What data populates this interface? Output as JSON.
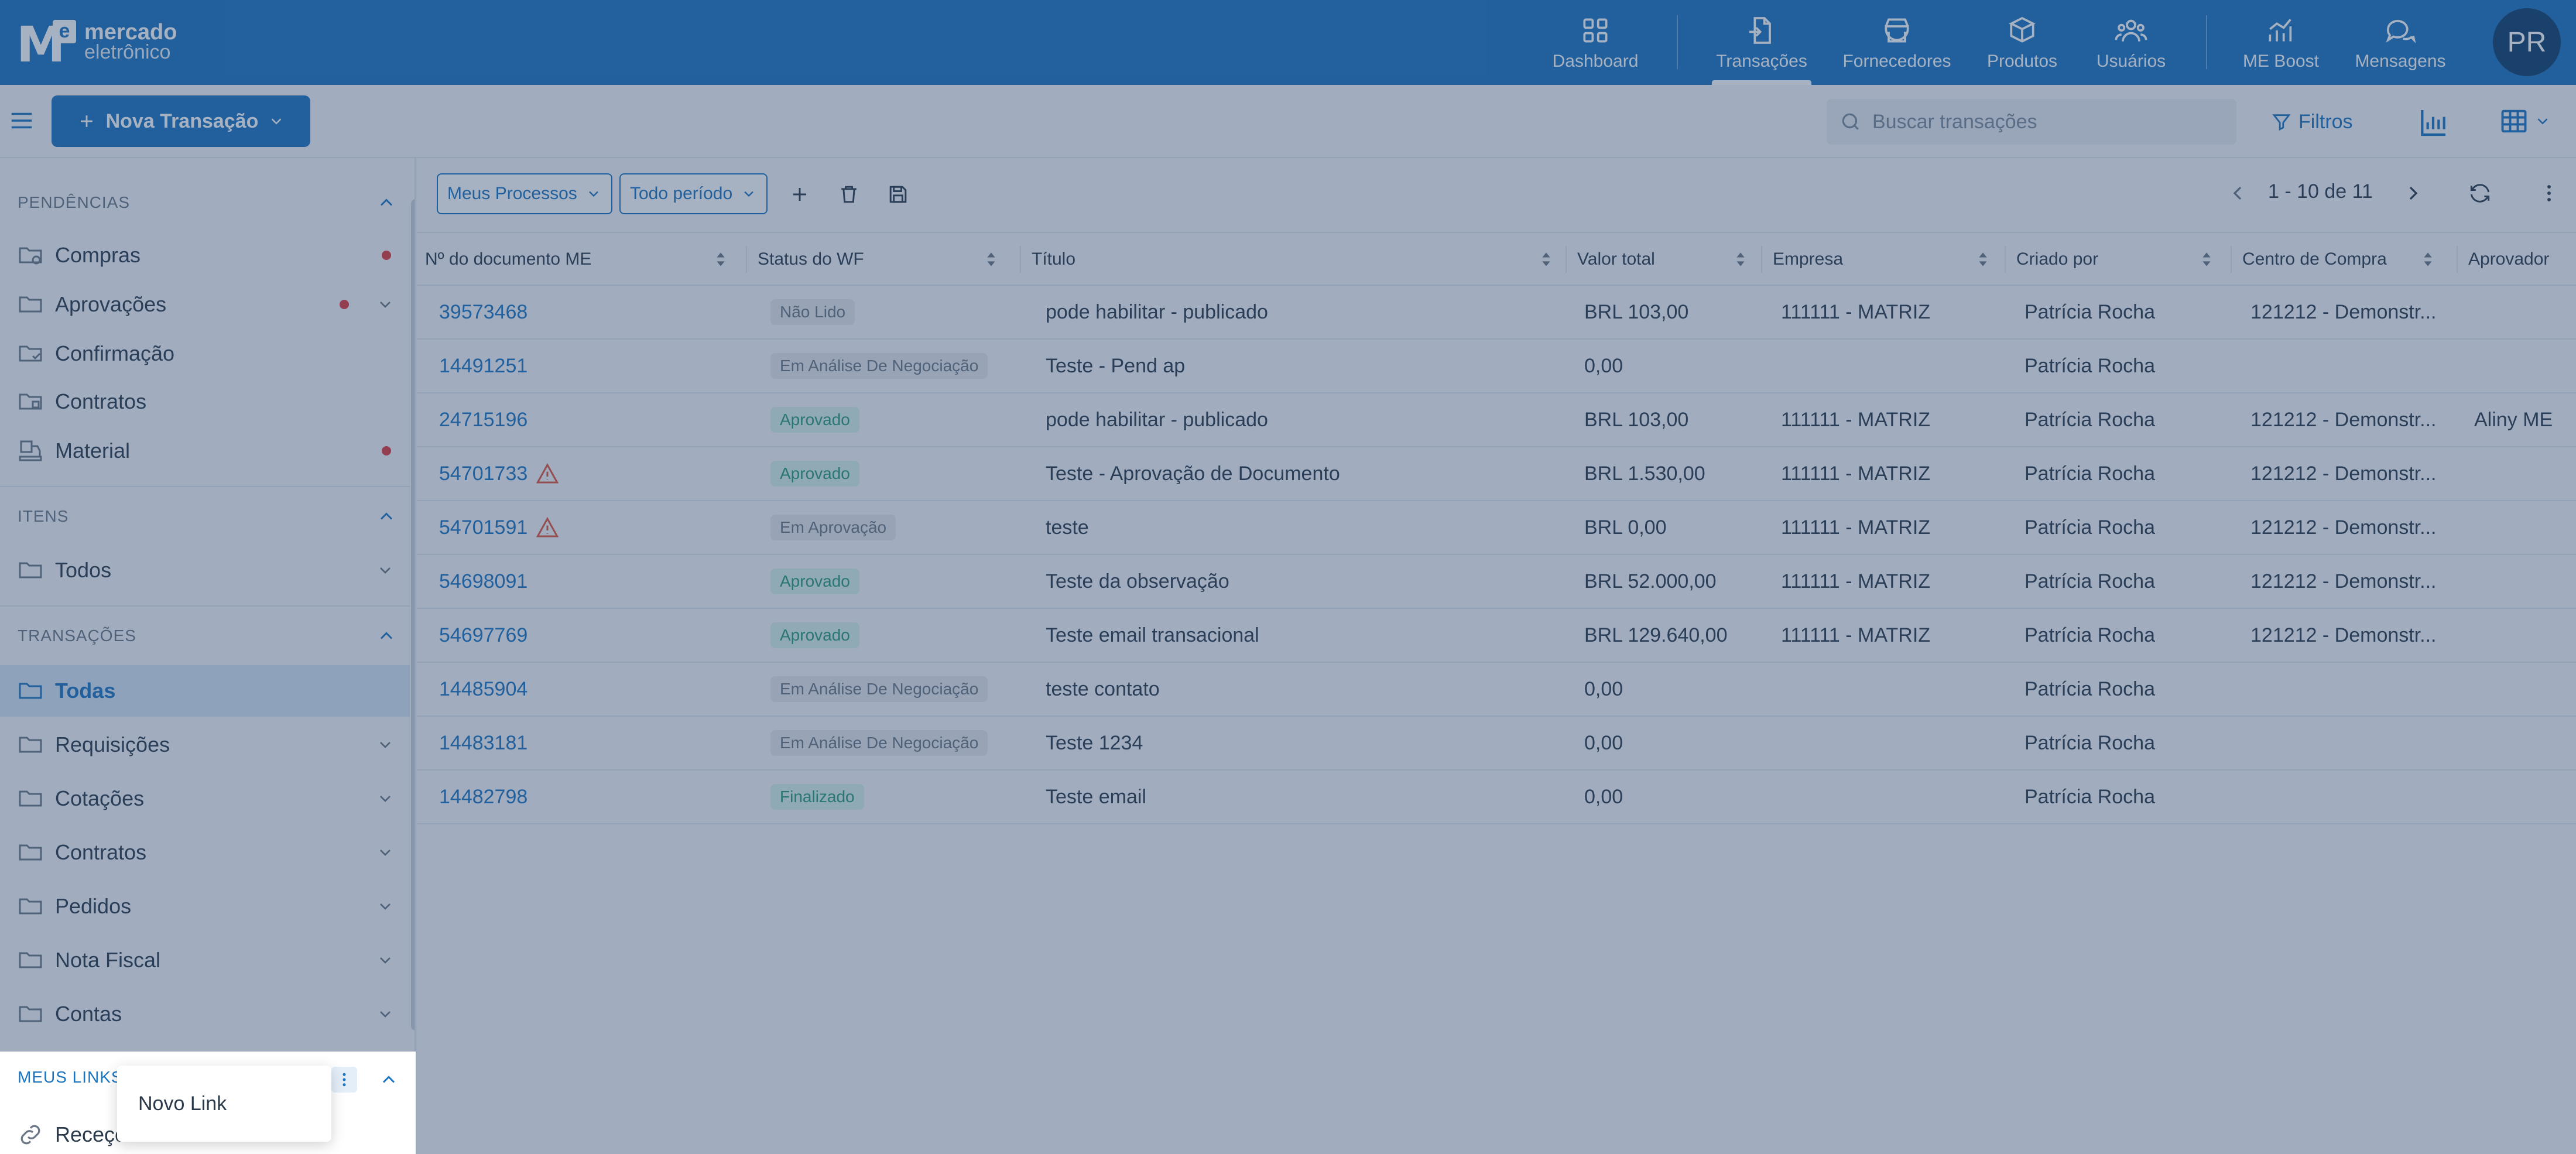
{
  "brand": {
    "line1": "mercado",
    "line2": "eletrônico",
    "mark_letter": "M",
    "mark_badge": "e"
  },
  "nav": [
    {
      "label": "Dashboard",
      "icon": "dashboard-icon"
    },
    {
      "label": "Transações",
      "icon": "transactions-icon",
      "active": true
    },
    {
      "label": "Fornecedores",
      "icon": "suppliers-icon"
    },
    {
      "label": "Produtos",
      "icon": "products-icon"
    },
    {
      "label": "Usuários",
      "icon": "users-icon"
    },
    {
      "label": "ME Boost",
      "icon": "boost-chart-icon"
    },
    {
      "label": "Mensagens",
      "icon": "messages-icon"
    }
  ],
  "user": {
    "initials": "PR"
  },
  "actionbar": {
    "new_button": "Nova Transação",
    "search_placeholder": "Buscar transações",
    "filters": "Filtros"
  },
  "sidebar": {
    "pendencias": {
      "title": "PENDÊNCIAS",
      "items": [
        {
          "label": "Compras",
          "dot": true
        },
        {
          "label": "Aprovações",
          "dot": true,
          "expandable": true
        },
        {
          "label": "Confirmação"
        },
        {
          "label": "Contratos"
        },
        {
          "label": "Material",
          "dot": true
        }
      ]
    },
    "itens": {
      "title": "ITENS",
      "items": [
        {
          "label": "Todos",
          "expandable": true
        }
      ]
    },
    "transacoes": {
      "title": "TRANSAÇÕES",
      "items": [
        {
          "label": "Todas",
          "active": true
        },
        {
          "label": "Requisições",
          "expandable": true
        },
        {
          "label": "Cotações",
          "expandable": true
        },
        {
          "label": "Contratos",
          "expandable": true
        },
        {
          "label": "Pedidos",
          "expandable": true
        },
        {
          "label": "Nota Fiscal",
          "expandable": true
        },
        {
          "label": "Contas",
          "expandable": true
        }
      ]
    },
    "meus_links": {
      "title": "MEUS LINKS",
      "item": "Receçõ",
      "popup_item": "Novo Link"
    }
  },
  "toolbar": {
    "process_filter": "Meus Processos",
    "period_filter": "Todo período",
    "pager": "1 - 10 de 11"
  },
  "table": {
    "columns": [
      "Nº do documento ME",
      "Status do WF",
      "Título",
      "Valor total",
      "Empresa",
      "Criado por",
      "Centro de Compra",
      "Aprovador"
    ],
    "rows": [
      {
        "doc": "39573468",
        "warn": false,
        "status": "Não Lido",
        "status_kind": "gray",
        "title": "pode habilitar - publicado",
        "value": "BRL 103,00",
        "company": "111111 - MATRIZ",
        "created_by": "Patrícia Rocha",
        "center": "121212 - Demonstr...",
        "approver": ""
      },
      {
        "doc": "14491251",
        "warn": false,
        "status": "Em Análise De Negociação",
        "status_kind": "gray",
        "title": "Teste - Pend ap",
        "value": "0,00",
        "company": "",
        "created_by": "Patrícia Rocha",
        "center": "",
        "approver": ""
      },
      {
        "doc": "24715196",
        "warn": false,
        "status": "Aprovado",
        "status_kind": "green",
        "title": "pode habilitar - publicado",
        "value": "BRL 103,00",
        "company": "111111 - MATRIZ",
        "created_by": "Patrícia Rocha",
        "center": "121212 - Demonstr...",
        "approver": "Aliny ME"
      },
      {
        "doc": "54701733",
        "warn": true,
        "status": "Aprovado",
        "status_kind": "green",
        "title": "Teste - Aprovação de Documento",
        "value": "BRL 1.530,00",
        "company": "111111 - MATRIZ",
        "created_by": "Patrícia Rocha",
        "center": "121212 - Demonstr...",
        "approver": ""
      },
      {
        "doc": "54701591",
        "warn": true,
        "status": "Em Aprovação",
        "status_kind": "gray",
        "title": "teste",
        "value": "BRL 0,00",
        "company": "111111 - MATRIZ",
        "created_by": "Patrícia Rocha",
        "center": "121212 - Demonstr...",
        "approver": ""
      },
      {
        "doc": "54698091",
        "warn": false,
        "status": "Aprovado",
        "status_kind": "green",
        "title": "Teste da observação",
        "value": "BRL 52.000,00",
        "company": "111111 - MATRIZ",
        "created_by": "Patrícia Rocha",
        "center": "121212 - Demonstr...",
        "approver": ""
      },
      {
        "doc": "54697769",
        "warn": false,
        "status": "Aprovado",
        "status_kind": "green",
        "title": "Teste email transacional",
        "value": "BRL 129.640,00",
        "company": "111111 - MATRIZ",
        "created_by": "Patrícia Rocha",
        "center": "121212 - Demonstr...",
        "approver": ""
      },
      {
        "doc": "14485904",
        "warn": false,
        "status": "Em Análise De Negociação",
        "status_kind": "gray",
        "title": "teste contato",
        "value": "0,00",
        "company": "",
        "created_by": "Patrícia Rocha",
        "center": "",
        "approver": ""
      },
      {
        "doc": "14483181",
        "warn": false,
        "status": "Em Análise De Negociação",
        "status_kind": "gray",
        "title": "Teste 1234",
        "value": "0,00",
        "company": "",
        "created_by": "Patrícia Rocha",
        "center": "",
        "approver": ""
      },
      {
        "doc": "14482798",
        "warn": false,
        "status": "Finalizado",
        "status_kind": "green",
        "title": "Teste email",
        "value": "0,00",
        "company": "",
        "created_by": "Patrícia Rocha",
        "center": "",
        "approver": ""
      }
    ]
  },
  "colors": {
    "primary": "#1b74c0",
    "alert_dot": "#e03b3b",
    "warning": "#e0553b"
  }
}
